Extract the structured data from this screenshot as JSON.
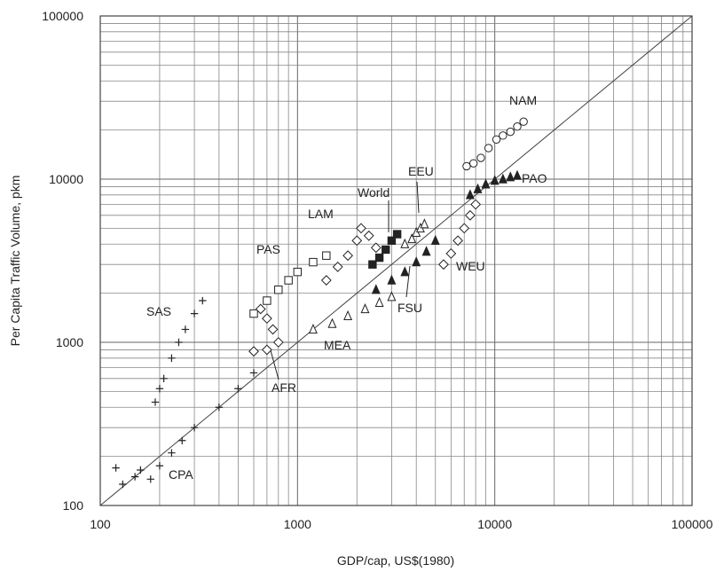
{
  "chart_data": {
    "type": "scatter",
    "title": "",
    "xlabel": "GDP/cap, US$(1980)",
    "ylabel": "Per Capita Traffic Volume, pkm",
    "xscale": "log",
    "yscale": "log",
    "xlim": [
      100,
      100000
    ],
    "ylim": [
      100,
      100000
    ],
    "grid": true,
    "x_tick_labels": [
      "100",
      "1000",
      "10000",
      "100000"
    ],
    "y_tick_labels": [
      "100",
      "1000",
      "10000",
      "100000"
    ],
    "reference_line": {
      "x": [
        100,
        100000
      ],
      "y": [
        100,
        100000
      ]
    },
    "series": [
      {
        "name": "NAM",
        "marker": "circle",
        "points": [
          [
            7200,
            12000
          ],
          [
            7800,
            12500
          ],
          [
            8500,
            13500
          ],
          [
            9300,
            15500
          ],
          [
            10200,
            17500
          ],
          [
            11000,
            18500
          ],
          [
            12000,
            19500
          ],
          [
            13000,
            21000
          ],
          [
            14000,
            22500
          ]
        ]
      },
      {
        "name": "PAO",
        "marker": "triangle-filled",
        "points": [
          [
            7500,
            8000
          ],
          [
            8200,
            8700
          ],
          [
            9000,
            9300
          ],
          [
            10000,
            9800
          ],
          [
            11000,
            10000
          ],
          [
            12000,
            10300
          ],
          [
            13000,
            10500
          ]
        ]
      },
      {
        "name": "EEU",
        "marker": "triangle",
        "points": [
          [
            3500,
            4000
          ],
          [
            3800,
            4300
          ],
          [
            4000,
            4700
          ],
          [
            4200,
            5000
          ],
          [
            4400,
            5300
          ]
        ]
      },
      {
        "name": "World",
        "marker": "square-filled",
        "points": [
          [
            2400,
            3000
          ],
          [
            2600,
            3300
          ],
          [
            2800,
            3700
          ],
          [
            3000,
            4200
          ],
          [
            3200,
            4600
          ]
        ]
      },
      {
        "name": "LAM",
        "marker": "diamond",
        "points": [
          [
            1400,
            2400
          ],
          [
            1600,
            2900
          ],
          [
            1800,
            3400
          ],
          [
            2000,
            4200
          ],
          [
            2100,
            5000
          ],
          [
            2300,
            4500
          ],
          [
            2500,
            3800
          ]
        ]
      },
      {
        "name": "PAS",
        "marker": "square",
        "points": [
          [
            600,
            1500
          ],
          [
            700,
            1800
          ],
          [
            800,
            2100
          ],
          [
            900,
            2400
          ],
          [
            1000,
            2700
          ],
          [
            1200,
            3100
          ],
          [
            1400,
            3400
          ]
        ]
      },
      {
        "name": "SAS",
        "marker": "plus",
        "points": [
          [
            190,
            430
          ],
          [
            200,
            520
          ],
          [
            210,
            600
          ],
          [
            230,
            800
          ],
          [
            250,
            1000
          ],
          [
            270,
            1200
          ],
          [
            300,
            1500
          ],
          [
            330,
            1800
          ]
        ]
      },
      {
        "name": "CPA",
        "marker": "plus",
        "points": [
          [
            120,
            170
          ],
          [
            130,
            135
          ],
          [
            150,
            150
          ],
          [
            160,
            165
          ],
          [
            180,
            145
          ],
          [
            200,
            175
          ],
          [
            230,
            210
          ],
          [
            260,
            250
          ],
          [
            300,
            300
          ],
          [
            400,
            400
          ],
          [
            500,
            520
          ],
          [
            600,
            650
          ]
        ]
      },
      {
        "name": "AFR",
        "marker": "diamond",
        "points": [
          [
            650,
            1600
          ],
          [
            700,
            1400
          ],
          [
            750,
            1200
          ],
          [
            800,
            1000
          ],
          [
            700,
            900
          ],
          [
            600,
            880
          ]
        ]
      },
      {
        "name": "MEA",
        "marker": "triangle",
        "points": [
          [
            1200,
            1200
          ],
          [
            1500,
            1300
          ],
          [
            1800,
            1450
          ],
          [
            2200,
            1600
          ],
          [
            2600,
            1750
          ],
          [
            3000,
            1900
          ]
        ]
      },
      {
        "name": "FSU",
        "marker": "triangle-filled",
        "points": [
          [
            2500,
            2100
          ],
          [
            3000,
            2400
          ],
          [
            3500,
            2700
          ],
          [
            4000,
            3100
          ],
          [
            4500,
            3600
          ],
          [
            5000,
            4200
          ]
        ]
      },
      {
        "name": "WEU",
        "marker": "diamond",
        "points": [
          [
            5500,
            3000
          ],
          [
            6000,
            3500
          ],
          [
            6500,
            4200
          ],
          [
            7000,
            5000
          ],
          [
            7500,
            6000
          ],
          [
            8000,
            7000
          ]
        ]
      }
    ],
    "annotations": [
      "NAM",
      "PAO",
      "EEU",
      "World",
      "LAM",
      "PAS",
      "SAS",
      "CPA",
      "AFR",
      "MEA",
      "FSU",
      "WEU"
    ]
  }
}
